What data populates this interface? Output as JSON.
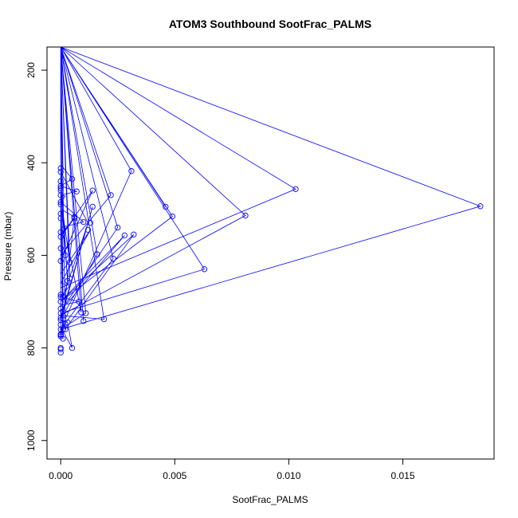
{
  "chart_data": {
    "type": "line",
    "title": "ATOM3 Southbound SootFrac_PALMS",
    "xlabel": "SootFrac_PALMS",
    "ylabel": "Pressure (mbar)",
    "xlim": [
      -0.0006,
      0.019
    ],
    "ylim": [
      1040,
      150
    ],
    "y_reversed": true,
    "grid": false,
    "xticks": [
      0.0,
      0.005,
      0.01,
      0.015
    ],
    "xtick_labels": [
      "0.000",
      "0.005",
      "0.010",
      "0.015"
    ],
    "yticks": [
      200,
      400,
      600,
      800,
      1000
    ],
    "ytick_labels": [
      "200",
      "400",
      "600",
      "800",
      "1000"
    ],
    "colors": {
      "series": "#0000ff",
      "axis": "#000000"
    },
    "series": [
      {
        "x": [
          0.0,
          0.0001,
          0.0005,
          0.0,
          0.0007,
          0.0,
          0.0002,
          0.0,
          0.001,
          0.0,
          0.0,
          0.0006,
          0.0,
          0.0014,
          0.0001,
          0.0,
          0.0,
          0.0013,
          0.0,
          0.0004,
          0.0,
          0.0008,
          0.0,
          0.0,
          0.0,
          0.0002,
          0.0,
          0.0014,
          0.0,
          0.0003,
          0.0005,
          0.0,
          0.0001,
          0.0,
          0.0001,
          0.0,
          0.0003,
          0.0,
          0.0012,
          0.0001,
          0.0,
          0.0004,
          0.0,
          0.0,
          0.0022,
          0.0,
          0.0,
          0.0025,
          0.0,
          0.0028,
          0.0,
          0.0032,
          0.0002,
          0.0,
          0.0,
          0.0031,
          0.0,
          0.0023,
          0.0,
          0.0016,
          0.0001,
          0.0,
          0.0019,
          0.0,
          0.0,
          0.001,
          0.0,
          0.0,
          0.0006,
          0.0,
          0.0009,
          0.0,
          0.0004,
          0.0,
          0.0011,
          0.0,
          0.0,
          0.0046,
          0.0,
          0.0049,
          0.0,
          0.0,
          0.0063,
          0.0,
          0.0,
          0.0081,
          0.0,
          0.0,
          0.0103,
          0.0,
          0.0,
          0.0184,
          0.0,
          0.0
        ],
        "y": [
          150,
          410,
          435,
          450,
          462,
          470,
          472,
          485,
          528,
          540,
          555,
          520,
          560,
          460,
          600,
          612,
          640,
          545,
          660,
          665,
          690,
          700,
          708,
          715,
          720,
          760,
          735,
          495,
          740,
          745,
          800,
          755,
          770,
          150,
          780,
          460,
          655,
          420,
          530,
          690,
          150,
          615,
          475,
          150,
          470,
          600,
          150,
          540,
          720,
          557,
          700,
          555,
          760,
          150,
          150,
          418,
          760,
          607,
          150,
          598,
          730,
          150,
          738,
          730,
          150,
          742,
          150,
          780,
          517,
          500,
          723,
          150,
          650,
          150,
          725,
          760,
          150,
          495,
          150,
          516,
          700,
          150,
          630,
          725,
          150,
          514,
          730,
          150,
          457,
          670,
          150,
          494,
          760,
          150
        ]
      }
    ],
    "markers": {
      "x": [
        0.0,
        0.0,
        0.0,
        0.0,
        0.0,
        0.0,
        0.0,
        0.0,
        0.0,
        0.0,
        0.0,
        0.0,
        0.0,
        0.0,
        0.0,
        0.0,
        0.0,
        0.0,
        0.0,
        0.0,
        0.0,
        0.0,
        0.0,
        0.0,
        0.0,
        0.0,
        0.0,
        0.0,
        0.0,
        0.0,
        0.0001,
        0.0001,
        0.0001,
        0.0001,
        0.0002,
        0.0002,
        0.0003,
        0.0003,
        0.0004,
        0.0004,
        0.0005,
        0.0005,
        0.0006,
        0.0006,
        0.0007,
        0.0008,
        0.0009,
        0.001,
        0.001,
        0.0011,
        0.0012,
        0.0013,
        0.0014,
        0.0014,
        0.0016,
        0.0019,
        0.0022,
        0.0023,
        0.0025,
        0.0028,
        0.0031,
        0.0032,
        0.0046,
        0.0049,
        0.0063,
        0.0081,
        0.0103,
        0.0184
      ],
      "y": [
        412,
        420,
        440,
        450,
        455,
        460,
        470,
        485,
        490,
        510,
        520,
        550,
        560,
        585,
        612,
        685,
        690,
        700,
        715,
        725,
        735,
        740,
        750,
        760,
        770,
        772,
        775,
        800,
        803,
        810,
        690,
        730,
        760,
        780,
        600,
        760,
        655,
        745,
        615,
        650,
        435,
        800,
        517,
        520,
        462,
        700,
        723,
        528,
        742,
        725,
        545,
        530,
        460,
        495,
        598,
        738,
        470,
        607,
        540,
        557,
        418,
        555,
        495,
        516,
        630,
        514,
        457,
        494
      ]
    }
  }
}
